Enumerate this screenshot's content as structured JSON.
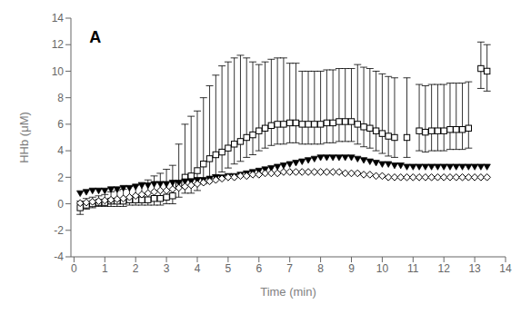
{
  "chart_data": {
    "type": "scatter",
    "xlabel": "Time (min)",
    "ylabel": "HHb (μM)",
    "xlim": [
      -0.1,
      14
    ],
    "ylim": [
      -4,
      14
    ],
    "xticks": [
      0,
      1,
      2,
      3,
      4,
      5,
      6,
      7,
      8,
      9,
      10,
      11,
      12,
      13,
      14
    ],
    "yticks": [
      -4,
      -2,
      0,
      2,
      4,
      6,
      8,
      10,
      12,
      14
    ],
    "grid": false,
    "annotations": [
      {
        "text": "A",
        "x": 0.5,
        "y": 13.0
      }
    ],
    "series": [
      {
        "marker": "square",
        "color": "#000000",
        "x": [
          0.2,
          0.4,
          0.6,
          0.8,
          1.0,
          1.2,
          1.4,
          1.6,
          1.8,
          2.0,
          2.2,
          2.4,
          2.6,
          2.8,
          3.0,
          3.2,
          3.4,
          3.6,
          3.8,
          4.0,
          4.2,
          4.4,
          4.6,
          4.8,
          5.0,
          5.2,
          5.4,
          5.6,
          5.8,
          6.0,
          6.2,
          6.4,
          6.6,
          6.8,
          7.0,
          7.2,
          7.4,
          7.6,
          7.8,
          8.0,
          8.2,
          8.4,
          8.6,
          8.8,
          9.0,
          9.2,
          9.4,
          9.6,
          9.8,
          10.0,
          10.2,
          10.4,
          10.8,
          11.2,
          11.4,
          11.6,
          11.8,
          12.0,
          12.2,
          12.4,
          12.6,
          12.8,
          13.2,
          13.4
        ],
        "values": [
          -0.3,
          -0.1,
          0.0,
          0.1,
          0.1,
          0.2,
          0.2,
          0.2,
          0.3,
          0.3,
          0.3,
          0.3,
          0.4,
          0.4,
          0.5,
          0.6,
          1.5,
          2.0,
          2.1,
          2.5,
          3.0,
          3.4,
          3.7,
          3.9,
          4.2,
          4.5,
          4.7,
          5.0,
          5.2,
          5.5,
          5.7,
          5.9,
          6.0,
          6.0,
          6.1,
          6.1,
          6.0,
          6.0,
          6.0,
          6.0,
          6.1,
          6.1,
          6.2,
          6.2,
          6.2,
          6.0,
          5.8,
          5.7,
          5.5,
          5.3,
          5.1,
          5.0,
          5.0,
          5.5,
          5.4,
          5.5,
          5.5,
          5.5,
          5.6,
          5.6,
          5.6,
          5.7,
          10.2,
          10.0
        ],
        "error_upper": [
          0.5,
          0.5,
          0.5,
          0.5,
          0.6,
          0.7,
          0.8,
          0.9,
          1.0,
          1.1,
          1.3,
          1.5,
          1.7,
          1.9,
          2.1,
          2.3,
          3.0,
          4.0,
          4.5,
          4.5,
          5.0,
          5.5,
          6.0,
          6.5,
          6.5,
          6.5,
          6.5,
          6.0,
          5.5,
          5.0,
          5.0,
          5.0,
          5.0,
          5.0,
          4.5,
          4.5,
          4.0,
          4.0,
          4.0,
          4.0,
          4.0,
          4.0,
          4.0,
          4.0,
          4.0,
          4.5,
          4.5,
          4.5,
          4.5,
          4.5,
          4.5,
          4.5,
          4.5,
          3.5,
          3.5,
          3.5,
          3.5,
          3.5,
          3.5,
          3.5,
          3.5,
          3.5,
          2.0,
          2.0
        ],
        "error_lower": [
          0.5,
          0.3,
          0.3,
          0.3,
          0.3,
          0.4,
          0.4,
          0.4,
          0.4,
          0.4,
          0.4,
          0.4,
          0.5,
          0.5,
          0.5,
          0.6,
          1.0,
          1.2,
          1.3,
          1.5,
          1.5,
          1.5,
          1.5,
          1.5,
          1.5,
          1.5,
          1.5,
          1.5,
          1.5,
          1.5,
          1.5,
          1.5,
          1.5,
          1.5,
          1.5,
          1.5,
          1.5,
          1.5,
          1.5,
          1.5,
          1.5,
          1.5,
          1.5,
          1.5,
          1.5,
          1.5,
          1.5,
          1.5,
          1.5,
          1.5,
          1.5,
          1.5,
          1.5,
          1.5,
          1.5,
          1.5,
          1.5,
          1.5,
          1.5,
          1.5,
          1.5,
          1.5,
          1.5,
          1.5
        ]
      },
      {
        "marker": "triangle_down",
        "color": "#000000",
        "x": [
          0.2,
          0.4,
          0.6,
          0.8,
          1.0,
          1.2,
          1.4,
          1.6,
          1.8,
          2.0,
          2.2,
          2.4,
          2.6,
          2.8,
          3.0,
          3.2,
          3.4,
          3.6,
          3.8,
          4.0,
          4.2,
          4.4,
          4.6,
          4.8,
          5.0,
          5.2,
          5.4,
          5.6,
          5.8,
          6.0,
          6.2,
          6.4,
          6.6,
          6.8,
          7.0,
          7.2,
          7.4,
          7.6,
          7.8,
          8.0,
          8.2,
          8.4,
          8.6,
          8.8,
          9.0,
          9.2,
          9.4,
          9.6,
          9.8,
          10.0,
          10.2,
          10.4,
          10.6,
          10.8,
          11.0,
          11.2,
          11.4,
          11.6,
          11.8,
          12.0,
          12.2,
          12.4,
          12.6,
          12.8,
          13.0,
          13.2,
          13.4
        ],
        "values": [
          0.8,
          0.9,
          1.0,
          1.0,
          1.0,
          1.1,
          1.1,
          1.2,
          1.2,
          1.3,
          1.4,
          1.4,
          1.5,
          1.5,
          1.5,
          1.6,
          1.6,
          1.7,
          1.7,
          1.8,
          1.8,
          1.9,
          2.0,
          2.0,
          2.1,
          2.1,
          2.2,
          2.3,
          2.4,
          2.5,
          2.6,
          2.7,
          2.8,
          2.9,
          3.0,
          3.1,
          3.2,
          3.3,
          3.4,
          3.5,
          3.5,
          3.5,
          3.5,
          3.5,
          3.5,
          3.4,
          3.3,
          3.2,
          3.1,
          3.0,
          3.0,
          2.9,
          2.9,
          2.8,
          2.8,
          2.8,
          2.8,
          2.8,
          2.8,
          2.8,
          2.8,
          2.8,
          2.8,
          2.8,
          2.8,
          2.8,
          2.8
        ]
      },
      {
        "marker": "diamond",
        "color": "#000000",
        "x": [
          0.2,
          0.4,
          0.6,
          0.8,
          1.0,
          1.2,
          1.4,
          1.6,
          1.8,
          2.0,
          2.2,
          2.4,
          2.6,
          2.8,
          3.0,
          3.2,
          3.4,
          3.6,
          3.8,
          4.0,
          4.2,
          4.4,
          4.6,
          4.8,
          5.0,
          5.2,
          5.4,
          5.6,
          5.8,
          6.0,
          6.2,
          6.4,
          6.6,
          6.8,
          7.0,
          7.2,
          7.4,
          7.6,
          7.8,
          8.0,
          8.2,
          8.4,
          8.6,
          8.8,
          9.0,
          9.2,
          9.4,
          9.6,
          9.8,
          10.0,
          10.2,
          10.4,
          10.6,
          10.8,
          11.0,
          11.2,
          11.4,
          11.6,
          11.8,
          12.0,
          12.2,
          12.4,
          12.6,
          12.8,
          13.0,
          13.2,
          13.4
        ],
        "values": [
          0.05,
          0.1,
          0.15,
          0.2,
          0.25,
          0.3,
          0.35,
          0.4,
          0.5,
          0.6,
          0.7,
          0.8,
          0.9,
          1.0,
          1.0,
          1.1,
          1.2,
          1.3,
          1.4,
          1.5,
          1.6,
          1.7,
          1.8,
          1.9,
          2.0,
          2.0,
          2.1,
          2.1,
          2.2,
          2.2,
          2.3,
          2.3,
          2.3,
          2.4,
          2.4,
          2.4,
          2.4,
          2.4,
          2.4,
          2.4,
          2.4,
          2.4,
          2.4,
          2.3,
          2.3,
          2.3,
          2.2,
          2.2,
          2.1,
          2.1,
          2.0,
          2.0,
          2.0,
          2.0,
          2.0,
          2.0,
          2.0,
          2.0,
          2.0,
          2.0,
          2.0,
          2.0,
          2.0,
          2.0,
          2.0,
          2.0,
          2.0
        ]
      }
    ]
  }
}
